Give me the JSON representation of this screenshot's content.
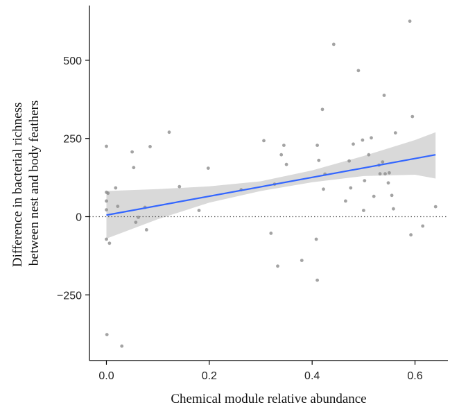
{
  "chart_data": {
    "type": "scatter",
    "xlabel": "Chemical module relative abundance",
    "ylabel": [
      "Difference in bacterial richness",
      "between nest and body feathers"
    ],
    "xlim": [
      -0.033,
      0.664
    ],
    "ylim": [
      -460,
      675
    ],
    "x_ticks": [
      0.0,
      0.2,
      0.4,
      0.6
    ],
    "x_tick_labels": [
      "0.0",
      "0.2",
      "0.4",
      "0.6"
    ],
    "y_ticks": [
      -250,
      0,
      250,
      500
    ],
    "y_tick_labels": [
      "−250",
      "0",
      "250",
      "500"
    ],
    "reference_line": {
      "y": 0,
      "style": "dotted"
    },
    "grid": false,
    "colors": {
      "points": "#8c8c8c",
      "fit_line": "#3366ff",
      "ribbon": "#d9d9d9",
      "axis": "#000000"
    },
    "points": [
      [
        0.0,
        225
      ],
      [
        0.0,
        78
      ],
      [
        0.0,
        50
      ],
      [
        0.0,
        22
      ],
      [
        0.0,
        -72
      ],
      [
        0.003,
        75
      ],
      [
        0.006,
        -85
      ],
      [
        0.001,
        -377
      ],
      [
        0.018,
        92
      ],
      [
        0.022,
        33
      ],
      [
        0.03,
        -414
      ],
      [
        0.05,
        207
      ],
      [
        0.053,
        157
      ],
      [
        0.057,
        -18
      ],
      [
        0.062,
        -2
      ],
      [
        0.075,
        30
      ],
      [
        0.078,
        -42
      ],
      [
        0.085,
        224
      ],
      [
        0.122,
        270
      ],
      [
        0.142,
        96
      ],
      [
        0.18,
        20
      ],
      [
        0.198,
        155
      ],
      [
        0.262,
        86
      ],
      [
        0.306,
        243
      ],
      [
        0.32,
        -53
      ],
      [
        0.327,
        104
      ],
      [
        0.333,
        -158
      ],
      [
        0.34,
        198
      ],
      [
        0.345,
        228
      ],
      [
        0.35,
        167
      ],
      [
        0.38,
        -140
      ],
      [
        0.408,
        -72
      ],
      [
        0.41,
        -203
      ],
      [
        0.41,
        228
      ],
      [
        0.413,
        180
      ],
      [
        0.42,
        343
      ],
      [
        0.422,
        88
      ],
      [
        0.425,
        136
      ],
      [
        0.442,
        551
      ],
      [
        0.465,
        50
      ],
      [
        0.472,
        178
      ],
      [
        0.475,
        92
      ],
      [
        0.48,
        232
      ],
      [
        0.49,
        467
      ],
      [
        0.498,
        245
      ],
      [
        0.5,
        20
      ],
      [
        0.502,
        115
      ],
      [
        0.51,
        198
      ],
      [
        0.515,
        252
      ],
      [
        0.52,
        65
      ],
      [
        0.53,
        165
      ],
      [
        0.532,
        137
      ],
      [
        0.537,
        175
      ],
      [
        0.54,
        388
      ],
      [
        0.542,
        137
      ],
      [
        0.548,
        108
      ],
      [
        0.55,
        140
      ],
      [
        0.555,
        68
      ],
      [
        0.558,
        25
      ],
      [
        0.562,
        268
      ],
      [
        0.59,
        625
      ],
      [
        0.592,
        -58
      ],
      [
        0.595,
        320
      ],
      [
        0.615,
        -30
      ],
      [
        0.64,
        32
      ]
    ],
    "fit": {
      "x": [
        0.0,
        0.64
      ],
      "y": [
        5,
        198
      ]
    },
    "confidence_band": {
      "x": [
        0.0,
        0.1,
        0.2,
        0.3,
        0.4,
        0.5,
        0.6,
        0.64
      ],
      "upper": [
        82,
        88,
        97,
        113,
        148,
        194,
        245,
        270
      ],
      "lower": [
        -70,
        -8,
        45,
        82,
        110,
        130,
        134,
        122
      ]
    }
  }
}
